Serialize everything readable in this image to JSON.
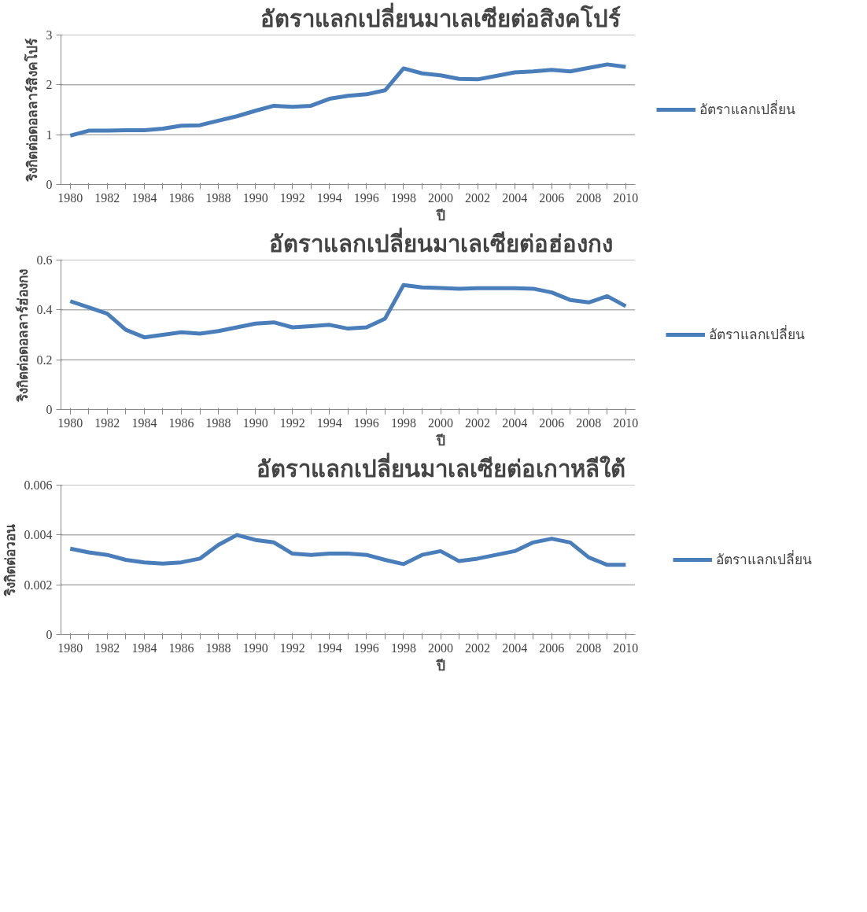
{
  "chart_data": [
    {
      "type": "line",
      "title": "อัตราแลกเปลี่ยนมาเลเซียต่อสิงคโปร์",
      "xlabel": "ปี",
      "ylabel": "ริงกิตต่อดอลลาร์สิงคโปร์",
      "categories": [
        "1980",
        null,
        "1982",
        null,
        "1984",
        null,
        "1986",
        null,
        "1988",
        null,
        "1990",
        null,
        "1992",
        null,
        "1994",
        null,
        "1996",
        null,
        "1998",
        null,
        "2000",
        null,
        "2002",
        null,
        "2004",
        null,
        "2006",
        null,
        "2008",
        null,
        "2010"
      ],
      "series": [
        {
          "name": "อัตราแลกเปลี่ยน",
          "color": "#4a7ebb",
          "values": [
            0.98,
            1.08,
            1.08,
            1.09,
            1.09,
            1.12,
            1.18,
            1.19,
            1.28,
            1.37,
            1.48,
            1.58,
            1.56,
            1.58,
            1.72,
            1.78,
            1.81,
            1.89,
            2.33,
            2.23,
            2.19,
            2.12,
            2.11,
            2.18,
            2.25,
            2.27,
            2.3,
            2.27,
            2.34,
            2.41,
            2.36
          ]
        }
      ],
      "ylim": [
        0,
        3
      ],
      "yticks": [
        0,
        1,
        2,
        3
      ],
      "grid": "y",
      "legend": "right",
      "marker": "none",
      "line_style": "solid"
    },
    {
      "type": "line",
      "title": "อัตราแลกเปลี่ยนมาเลเซียต่อฮ่องกง",
      "xlabel": "ปี",
      "ylabel": "ริงกิตต่อดอลลาร์ฮ่องกง",
      "categories": [
        "1980",
        null,
        "1982",
        null,
        "1984",
        null,
        "1986",
        null,
        "1988",
        null,
        "1990",
        null,
        "1992",
        null,
        "1994",
        null,
        "1996",
        null,
        "1998",
        null,
        "2000",
        null,
        "2002",
        null,
        "2004",
        null,
        "2006",
        null,
        "2008",
        null,
        "2010"
      ],
      "series": [
        {
          "name": "อัตราแลกเปลี่ยน",
          "color": "#4a7ebb",
          "values": [
            0.435,
            0.41,
            0.385,
            0.32,
            0.29,
            0.3,
            0.31,
            0.305,
            0.315,
            0.33,
            0.345,
            0.35,
            0.33,
            0.335,
            0.34,
            0.325,
            0.33,
            0.365,
            0.5,
            0.49,
            0.488,
            0.485,
            0.487,
            0.487,
            0.487,
            0.485,
            0.47,
            0.44,
            0.43,
            0.455,
            0.415
          ]
        }
      ],
      "ylim": [
        0,
        0.6
      ],
      "yticks": [
        0,
        0.2,
        0.4,
        0.6
      ],
      "grid": "y",
      "legend": "right",
      "marker": "none",
      "line_style": "solid"
    },
    {
      "type": "line",
      "title": "อัตราแลกเปลี่ยนมาเลเซียต่อเกาหลีใต้",
      "xlabel": "ปี",
      "ylabel": "ริงกิตต่อวอน",
      "categories": [
        "1980",
        null,
        "1982",
        null,
        "1984",
        null,
        "1986",
        null,
        "1988",
        null,
        "1990",
        null,
        "1992",
        null,
        "1994",
        null,
        "1996",
        null,
        "1998",
        null,
        "2000",
        null,
        "2002",
        null,
        "2004",
        null,
        "2006",
        null,
        "2008",
        null,
        "2010"
      ],
      "series": [
        {
          "name": "อัตราแลกเปลี่ยน",
          "color": "#4a7ebb",
          "values": [
            0.00345,
            0.0033,
            0.0032,
            0.003,
            0.0029,
            0.00285,
            0.0029,
            0.00305,
            0.0036,
            0.004,
            0.0038,
            0.0037,
            0.00325,
            0.0032,
            0.00325,
            0.00325,
            0.0032,
            0.003,
            0.00283,
            0.0032,
            0.00335,
            0.00295,
            0.00305,
            0.0032,
            0.00335,
            0.0037,
            0.00385,
            0.0037,
            0.0031,
            0.0028,
            0.0028
          ]
        }
      ],
      "ylim": [
        0,
        0.006
      ],
      "yticks": [
        0,
        0.002,
        0.004,
        0.006
      ],
      "grid": "y",
      "legend": "right",
      "marker": "none",
      "line_style": "solid"
    }
  ]
}
